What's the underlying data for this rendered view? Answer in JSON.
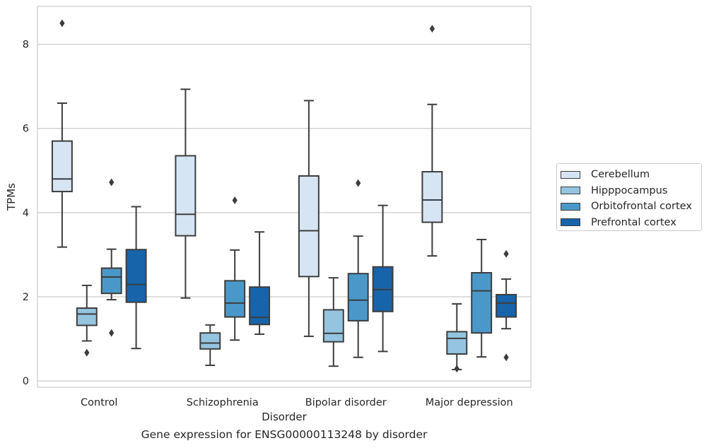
{
  "chart_data": {
    "type": "box",
    "title": "",
    "caption": "Gene expression for ENSG00000113248 by disorder",
    "xlabel": "Disorder",
    "ylabel": "TPMs",
    "ylim": [
      -0.15,
      8.9
    ],
    "yticks": [
      0,
      2,
      4,
      6,
      8
    ],
    "grid": "horizontal",
    "legend_position": "right",
    "categories": [
      "Control",
      "Schizophrenia",
      "Bipolar disorder",
      "Major depression"
    ],
    "series": [
      {
        "name": "Cerebellum",
        "color": "#d6e5f4",
        "boxes": [
          {
            "whisker_low": 3.18,
            "q1": 4.5,
            "median": 4.8,
            "q3": 5.7,
            "whisker_high": 6.6,
            "outliers": [
              8.5
            ]
          },
          {
            "whisker_low": 1.97,
            "q1": 3.45,
            "median": 3.96,
            "q3": 5.35,
            "whisker_high": 6.93,
            "outliers": []
          },
          {
            "whisker_low": 1.06,
            "q1": 2.48,
            "median": 3.57,
            "q3": 4.87,
            "whisker_high": 6.66,
            "outliers": []
          },
          {
            "whisker_low": 2.97,
            "q1": 3.77,
            "median": 4.3,
            "q3": 4.97,
            "whisker_high": 6.57,
            "outliers": [
              8.37
            ]
          }
        ]
      },
      {
        "name": "Hipppocampus",
        "color": "#94c4df",
        "boxes": [
          {
            "whisker_low": 0.95,
            "q1": 1.32,
            "median": 1.59,
            "q3": 1.73,
            "whisker_high": 2.27,
            "outliers": [
              0.67
            ]
          },
          {
            "whisker_low": 0.37,
            "q1": 0.76,
            "median": 0.9,
            "q3": 1.14,
            "whisker_high": 1.33,
            "outliers": []
          },
          {
            "whisker_low": 0.35,
            "q1": 0.93,
            "median": 1.13,
            "q3": 1.69,
            "whisker_high": 2.45,
            "outliers": []
          },
          {
            "whisker_low": 0.27,
            "q1": 0.64,
            "median": 1.01,
            "q3": 1.17,
            "whisker_high": 1.83,
            "outliers": [
              0.29
            ]
          }
        ]
      },
      {
        "name": "Orbitofrontal cortex",
        "color": "#4a98c9",
        "boxes": [
          {
            "whisker_low": 1.93,
            "q1": 2.08,
            "median": 2.47,
            "q3": 2.68,
            "whisker_high": 3.13,
            "outliers": [
              4.72,
              1.14
            ]
          },
          {
            "whisker_low": 0.97,
            "q1": 1.52,
            "median": 1.85,
            "q3": 2.38,
            "whisker_high": 3.11,
            "outliers": [
              4.29
            ]
          },
          {
            "whisker_low": 0.56,
            "q1": 1.43,
            "median": 1.92,
            "q3": 2.55,
            "whisker_high": 3.44,
            "outliers": [
              4.7
            ]
          },
          {
            "whisker_low": 0.57,
            "q1": 1.14,
            "median": 2.14,
            "q3": 2.57,
            "whisker_high": 3.36,
            "outliers": []
          }
        ]
      },
      {
        "name": "Prefrontal cortex",
        "color": "#1764ab",
        "boxes": [
          {
            "whisker_low": 0.77,
            "q1": 1.87,
            "median": 2.29,
            "q3": 3.12,
            "whisker_high": 4.14,
            "outliers": []
          },
          {
            "whisker_low": 1.11,
            "q1": 1.34,
            "median": 1.51,
            "q3": 2.23,
            "whisker_high": 3.54,
            "outliers": []
          },
          {
            "whisker_low": 0.7,
            "q1": 1.65,
            "median": 2.17,
            "q3": 2.71,
            "whisker_high": 4.17,
            "outliers": []
          },
          {
            "whisker_low": 1.24,
            "q1": 1.52,
            "median": 1.85,
            "q3": 2.05,
            "whisker_high": 2.42,
            "outliers": [
              3.02,
              0.56
            ]
          }
        ]
      }
    ]
  }
}
